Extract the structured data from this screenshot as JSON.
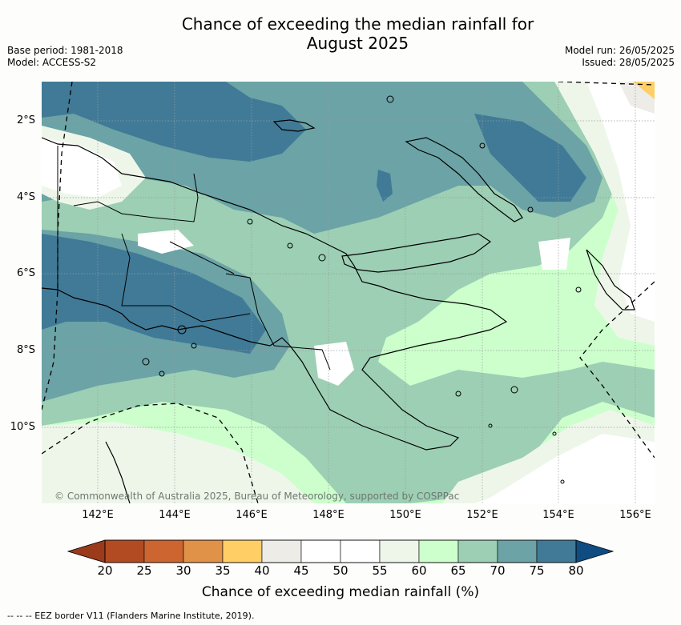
{
  "title": {
    "line1": "Chance of exceeding the median rainfall for",
    "line2": "August 2025"
  },
  "meta_left": {
    "base_period": "Base period: 1981-2018",
    "model": "Model: ACCESS-S2"
  },
  "meta_right": {
    "model_run": "Model run: 26/05/2025",
    "issued": "Issued: 28/05/2025"
  },
  "map": {
    "copyright": "© Commonwealth of Australia 2025, Bureau of Meteorology, supported by COSPPac",
    "lat_labels": [
      "2°S",
      "4°S",
      "6°S",
      "8°S",
      "10°S"
    ],
    "lon_labels": [
      "142°E",
      "144°E",
      "146°E",
      "148°E",
      "150°E",
      "152°E",
      "154°E",
      "156°E"
    ]
  },
  "colorbar": {
    "ticks": [
      "20",
      "25",
      "30",
      "35",
      "40",
      "45",
      "50",
      "55",
      "60",
      "65",
      "70",
      "75",
      "80"
    ],
    "colors": [
      "#b34b22",
      "#cd6530",
      "#e09249",
      "#ffcf66",
      "#eeece7",
      "#ffffff",
      "#ffffff",
      "#eef6ea",
      "#ccffcc",
      "#9ccfb4",
      "#6ba3a6",
      "#407a97"
    ],
    "low_color": "#9c3a1c",
    "high_color": "#0f4c82",
    "label": "Chance of exceeding median rainfall (%)"
  },
  "legend_note": "--  --  -- EEZ border V11 (Flanders Marine Institute, 2019)."
}
